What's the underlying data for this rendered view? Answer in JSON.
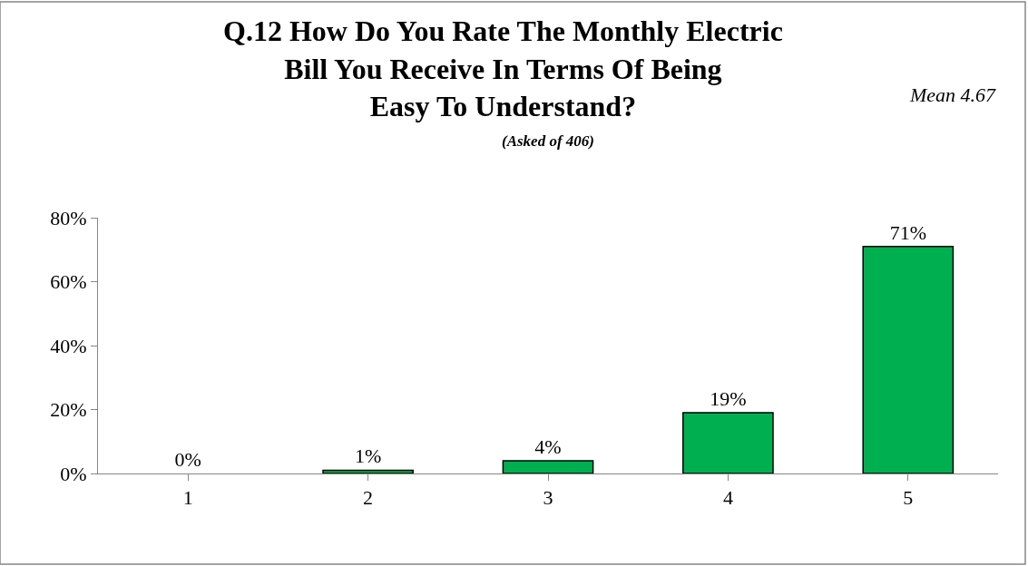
{
  "chart_data": {
    "type": "bar",
    "title": "Q.12 How Do You Rate The Monthly Electric\nBill You Receive In Terms Of Being\nEasy To Understand?",
    "subtitle": "(Asked of 406)",
    "annotations": [
      "Mean 4.67"
    ],
    "categories": [
      "1",
      "2",
      "3",
      "4",
      "5"
    ],
    "values": [
      0,
      1,
      4,
      19,
      71
    ],
    "value_labels": [
      "0%",
      "1%",
      "4%",
      "19%",
      "71%"
    ],
    "color": "#00b050",
    "ylim": [
      0,
      80
    ],
    "yticks": [
      {
        "value": 0,
        "label": "0%"
      },
      {
        "value": 20,
        "label": "20%"
      },
      {
        "value": 40,
        "label": "40%"
      },
      {
        "value": 60,
        "label": "60%"
      },
      {
        "value": 80,
        "label": "80%"
      }
    ],
    "legend": false
  }
}
